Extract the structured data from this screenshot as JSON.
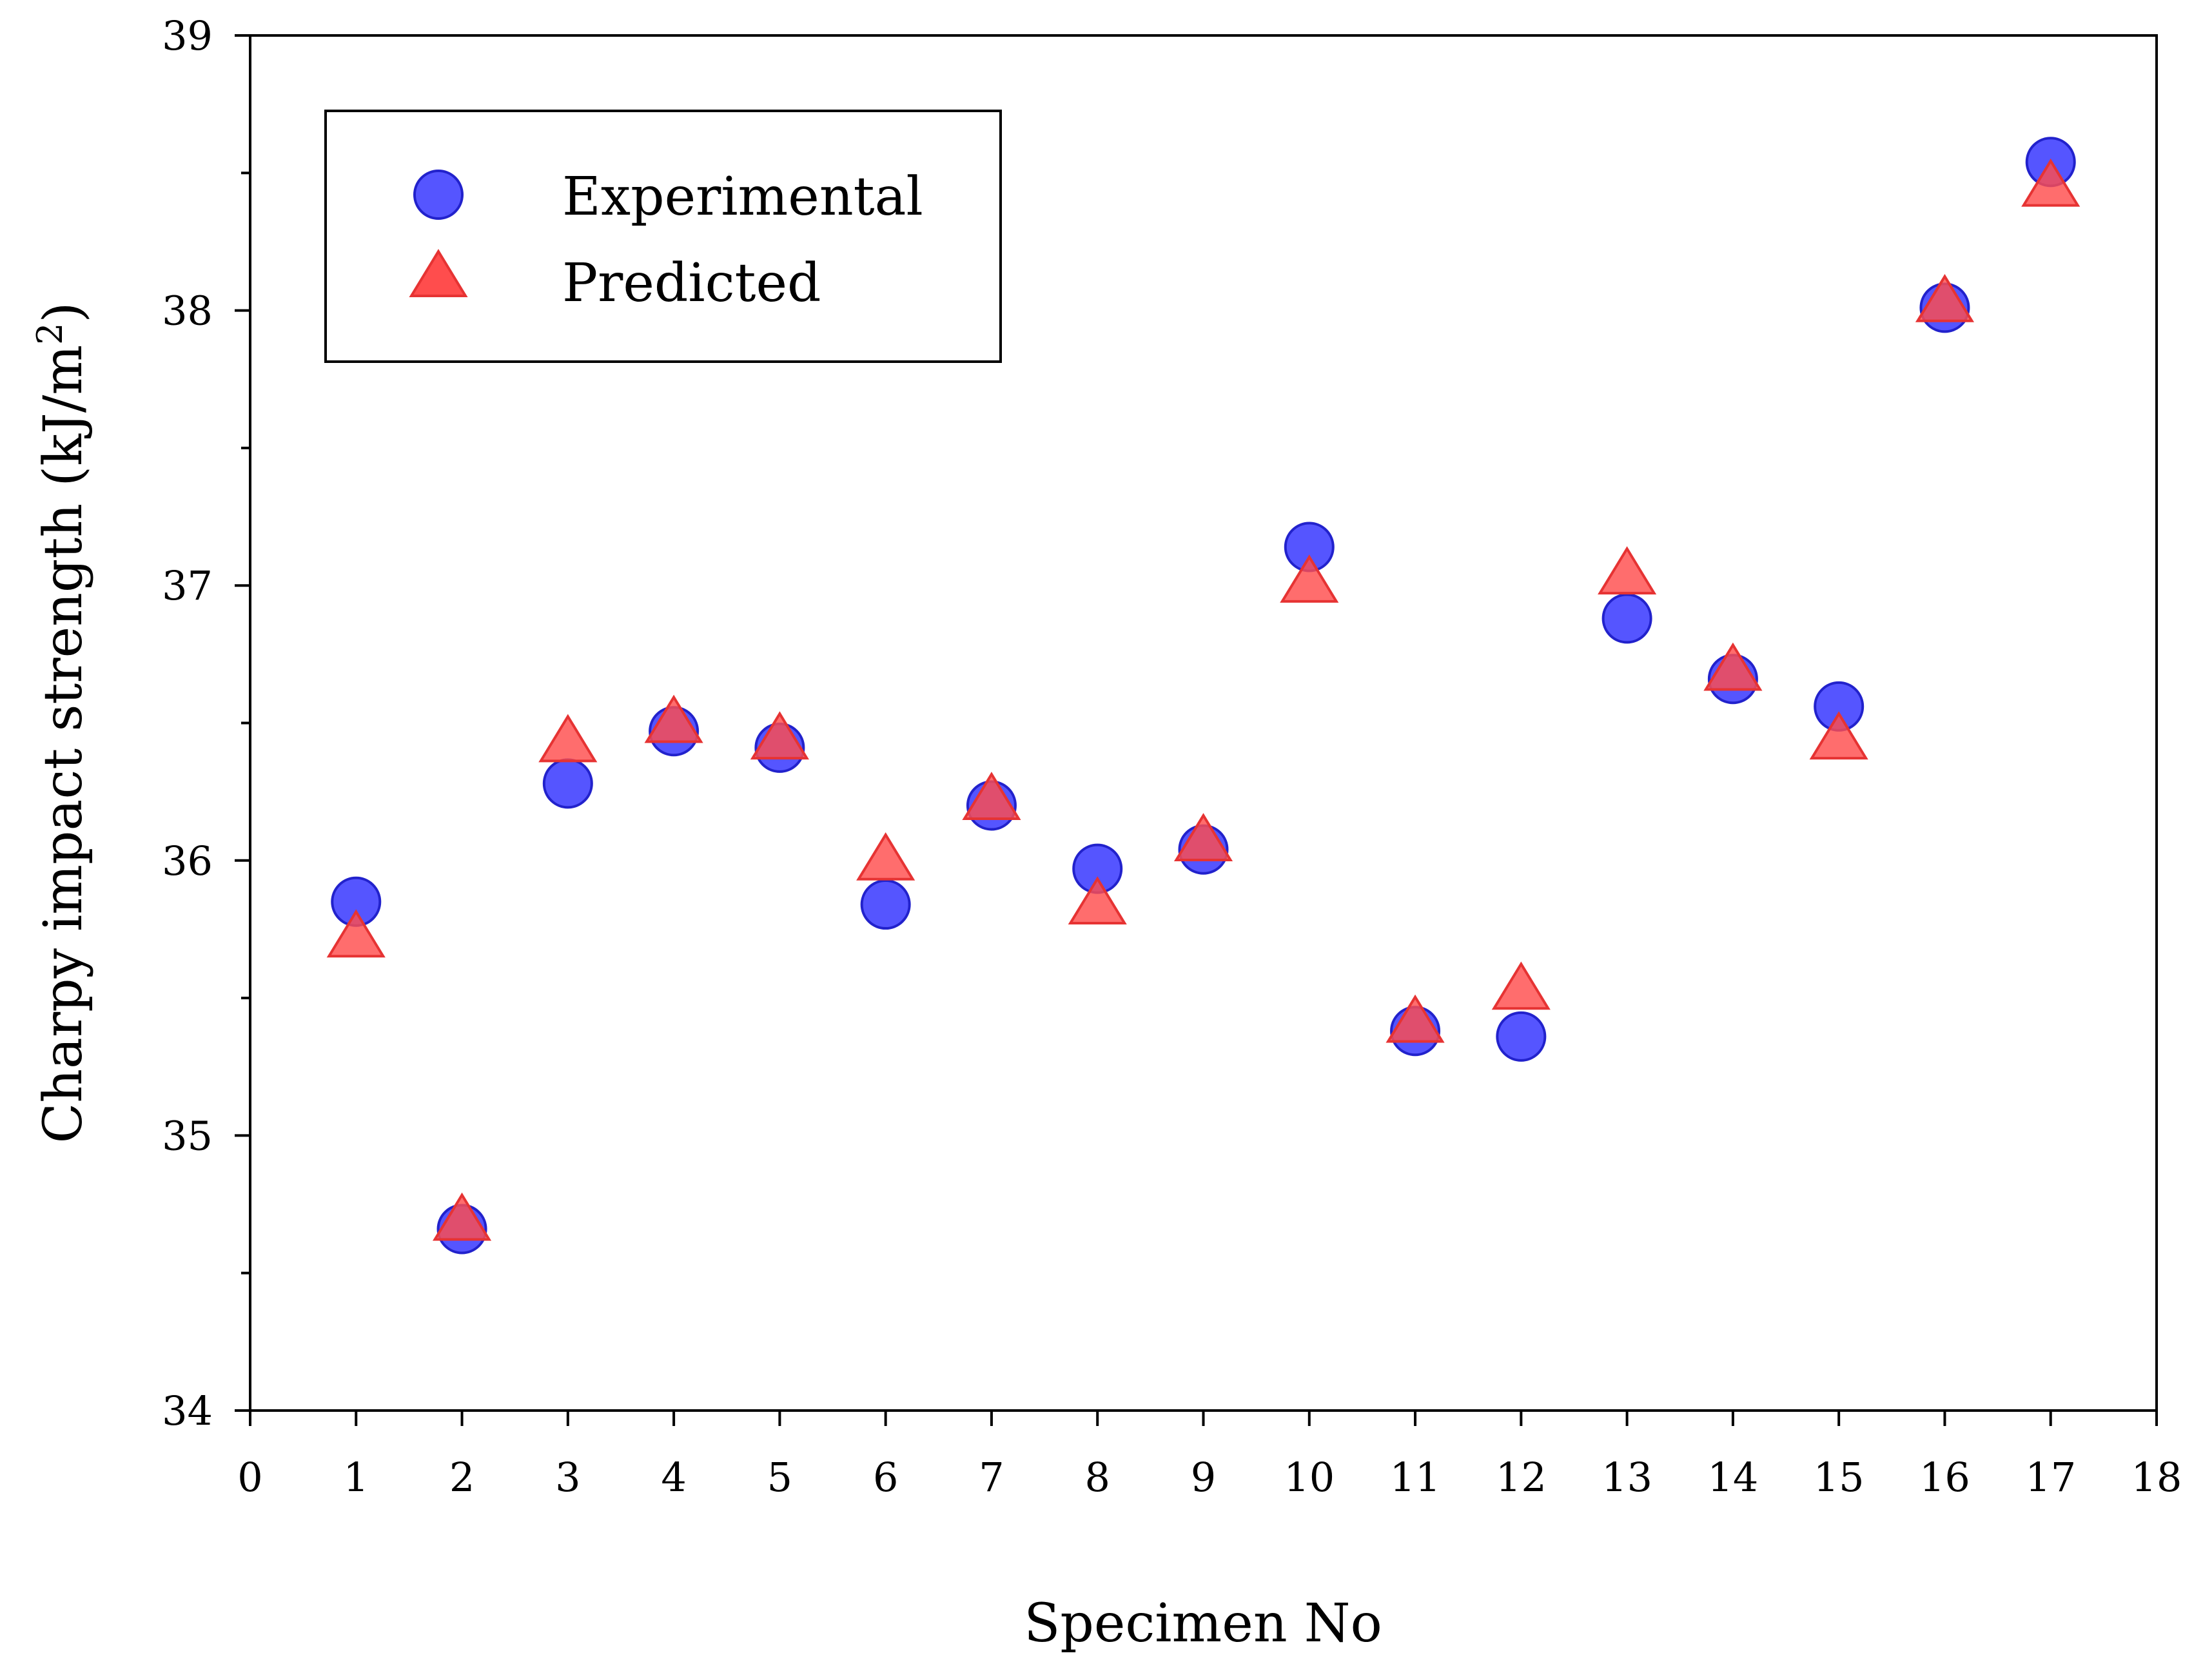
{
  "chart_data": {
    "type": "scatter",
    "xlabel": "Specimen No",
    "ylabel": "Charpy impact strength (kJ/m",
    "ylabel_superscript": "2",
    "ylabel_close": ")",
    "xlim": [
      0,
      18
    ],
    "ylim": [
      34,
      39
    ],
    "x_ticks": [
      "0",
      "1",
      "2",
      "3",
      "4",
      "5",
      "6",
      "7",
      "8",
      "9",
      "10",
      "11",
      "12",
      "13",
      "14",
      "15",
      "16",
      "17",
      "18"
    ],
    "y_ticks": [
      "34",
      "35",
      "36",
      "37",
      "38",
      "39"
    ],
    "y_minor_step": 0.5,
    "grid": false,
    "legend_position": "top-left",
    "x": [
      1,
      2,
      3,
      4,
      5,
      6,
      7,
      8,
      9,
      10,
      11,
      12,
      13,
      14,
      15,
      16,
      17
    ],
    "series": [
      {
        "name": "Experimental",
        "marker": "circle",
        "color": "#5555ff",
        "edge_color": "#2222cc",
        "values": [
          35.85,
          34.66,
          36.28,
          36.47,
          36.41,
          35.84,
          36.2,
          35.97,
          36.04,
          37.14,
          35.38,
          35.36,
          36.88,
          36.66,
          36.56,
          38.01,
          38.54
        ]
      },
      {
        "name": "Predicted",
        "marker": "triangle",
        "color": "#ff4d4d",
        "edge_color": "#e63333",
        "values": [
          35.72,
          34.69,
          36.43,
          36.5,
          36.44,
          36.0,
          36.22,
          35.84,
          36.07,
          37.01,
          35.41,
          35.53,
          37.04,
          36.69,
          36.44,
          38.03,
          38.45
        ]
      }
    ]
  }
}
